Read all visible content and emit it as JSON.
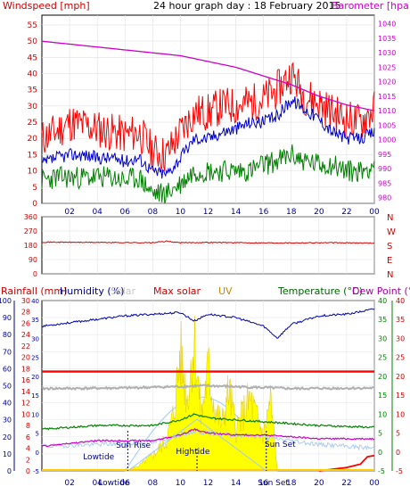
{
  "header": {
    "windspeed_label": "Windspeed [mph]",
    "title": "24 hour graph day : 18 February 2015",
    "barometer_label": "Barometer [hpa]"
  },
  "middle": {
    "header": {
      "rainfall": "Rainfall (mm)",
      "humidity": "Humidity (%)",
      "solar": "Solar",
      "max_solar": "Max solar",
      "uv": "UV",
      "temperature": "Temperature (°C)",
      "dewpoint": "Dew Point (°C)"
    }
  },
  "chart_data": [
    {
      "type": "line",
      "title": "24 hour graph day : 18 February 2015",
      "x_ticks": [
        "02",
        "04",
        "06",
        "08",
        "10",
        "12",
        "14",
        "16",
        "18",
        "20",
        "22",
        "00"
      ],
      "y_left_label": "Windspeed [mph]",
      "y_left_ticks": [
        0,
        5,
        10,
        15,
        20,
        25,
        30,
        35,
        40,
        45,
        50,
        55
      ],
      "y_left_range": [
        0,
        58
      ],
      "y_right_label": "Barometer [hpa]",
      "y_right_ticks": [
        980,
        985,
        990,
        995,
        1000,
        1005,
        1010,
        1015,
        1020,
        1025,
        1030,
        1035,
        1040
      ],
      "y_right_range": [
        978,
        1043
      ],
      "grid": true,
      "colors": {
        "gust": "#ff0000",
        "avg": "#0000cc",
        "low": "#008000",
        "baro": "#cc00cc"
      },
      "series": [
        {
          "name": "gust",
          "x": [
            0,
            1,
            2,
            3,
            4,
            5,
            6,
            7,
            8,
            9,
            10,
            11,
            12,
            13,
            14,
            15,
            16,
            17,
            18,
            19,
            20,
            21,
            22,
            23,
            24
          ],
          "values": [
            20,
            22,
            25,
            24,
            23,
            22,
            21,
            22,
            16,
            15,
            22,
            28,
            28,
            30,
            30,
            31,
            32,
            35,
            40,
            33,
            31,
            28,
            26,
            25,
            29
          ]
        },
        {
          "name": "average",
          "x": [
            0,
            1,
            2,
            3,
            4,
            5,
            6,
            7,
            8,
            9,
            10,
            11,
            12,
            13,
            14,
            15,
            16,
            17,
            18,
            19,
            20,
            21,
            22,
            23,
            24
          ],
          "values": [
            12,
            14,
            15,
            15,
            14,
            14,
            13,
            14,
            10,
            9,
            14,
            20,
            20,
            22,
            23,
            25,
            25,
            27,
            32,
            29,
            26,
            22,
            20,
            20,
            22
          ]
        },
        {
          "name": "low",
          "x": [
            0,
            1,
            2,
            3,
            4,
            5,
            6,
            7,
            8,
            9,
            10,
            11,
            12,
            13,
            14,
            15,
            16,
            17,
            18,
            19,
            20,
            21,
            22,
            23,
            24
          ],
          "values": [
            7,
            8,
            8,
            8,
            8,
            8,
            7,
            8,
            3,
            3,
            6,
            10,
            10,
            10,
            10,
            10,
            12,
            13,
            15,
            13,
            12,
            12,
            10,
            10,
            12
          ]
        },
        {
          "name": "barometer",
          "x": [
            0,
            2,
            4,
            6,
            8,
            10,
            12,
            14,
            16,
            18,
            20,
            22,
            24
          ],
          "values": [
            1034,
            1033,
            1032,
            1031,
            1030,
            1029,
            1027,
            1025,
            1022,
            1019,
            1015,
            1012,
            1010
          ]
        }
      ]
    },
    {
      "type": "line",
      "x_ticks": [
        "02",
        "04",
        "06",
        "08",
        "10",
        "12",
        "14",
        "16",
        "18",
        "20",
        "22",
        "00"
      ],
      "y_ticks": [
        0,
        90,
        180,
        270,
        360
      ],
      "y_range": [
        0,
        360
      ],
      "compass_labels": [
        "N",
        "W",
        "S",
        "E",
        "N"
      ],
      "grid": true,
      "series": [
        {
          "name": "wind direction",
          "x": [
            0,
            4,
            8,
            9,
            10,
            12,
            16,
            20,
            24
          ],
          "values": [
            200,
            198,
            196,
            205,
            196,
            198,
            195,
            196,
            194
          ]
        }
      ]
    },
    {
      "type": "area",
      "x_ticks": [
        "02",
        "04",
        "06",
        "08",
        "10",
        "12",
        "14",
        "16",
        "18",
        "20",
        "22",
        "00"
      ],
      "y_humidity_ticks": [
        0,
        10,
        20,
        30,
        40,
        50,
        60,
        70,
        80,
        90,
        100
      ],
      "y_rain_ticks": [
        0,
        2,
        4,
        6,
        8,
        10,
        12,
        14,
        16,
        18,
        20,
        22,
        24,
        26,
        28,
        30
      ],
      "y_temp_left_ticks": [
        -5,
        0,
        5,
        10,
        15,
        20,
        25,
        30,
        35,
        40
      ],
      "y_temp_right_ticks": [
        -5,
        0,
        5,
        10,
        15,
        20,
        25,
        30,
        35,
        40
      ],
      "annotations": [
        "Lowtide",
        "Sun Rise",
        "Hightide",
        "Sun Set",
        "Lowtide",
        "Sun Set"
      ],
      "grid": true,
      "series": [
        {
          "name": "humidity",
          "x": [
            0,
            2,
            4,
            6,
            8,
            10,
            11,
            12,
            14,
            16,
            17,
            18,
            20,
            22,
            24
          ],
          "values": [
            85,
            87,
            89,
            91,
            92,
            93,
            88,
            92,
            90,
            85,
            78,
            86,
            91,
            92,
            95
          ]
        },
        {
          "name": "max solar",
          "x": [
            0,
            6,
            12,
            18,
            24
          ],
          "values": [
            17.5,
            17.5,
            17.5,
            17.5,
            17.5
          ]
        },
        {
          "name": "uv",
          "x": [
            0,
            6,
            12,
            18,
            24
          ],
          "values": [
            14.5,
            14.6,
            15,
            14.5,
            14.6
          ]
        },
        {
          "name": "temperature",
          "x": [
            0,
            4,
            8,
            10,
            11,
            12,
            14,
            16,
            18,
            20,
            24
          ],
          "values": [
            6,
            7,
            7,
            8.5,
            10,
            9,
            8.5,
            8,
            7.5,
            7,
            6.5
          ]
        },
        {
          "name": "dew point",
          "x": [
            0,
            4,
            8,
            10,
            11,
            12,
            14,
            16,
            18,
            20,
            24
          ],
          "values": [
            1.5,
            3,
            3,
            4.5,
            6,
            5,
            4.5,
            4.5,
            4,
            3.5,
            3.5
          ]
        },
        {
          "name": "rain",
          "x": [
            0,
            20,
            21,
            22,
            23,
            23.5,
            24
          ],
          "values": [
            0,
            0,
            0.3,
            0.6,
            1.2,
            2.5,
            2.7
          ]
        },
        {
          "name": "solar",
          "x": [
            6,
            7,
            8,
            9,
            9.5,
            10,
            10.5,
            11,
            11.5,
            12,
            12.5,
            13,
            13.5,
            14,
            15,
            16,
            16.5,
            17
          ],
          "values": [
            0,
            1,
            3,
            6,
            11,
            23,
            14,
            26,
            10,
            20,
            12,
            9,
            16,
            8,
            14,
            7,
            14,
            0
          ]
        }
      ]
    }
  ]
}
